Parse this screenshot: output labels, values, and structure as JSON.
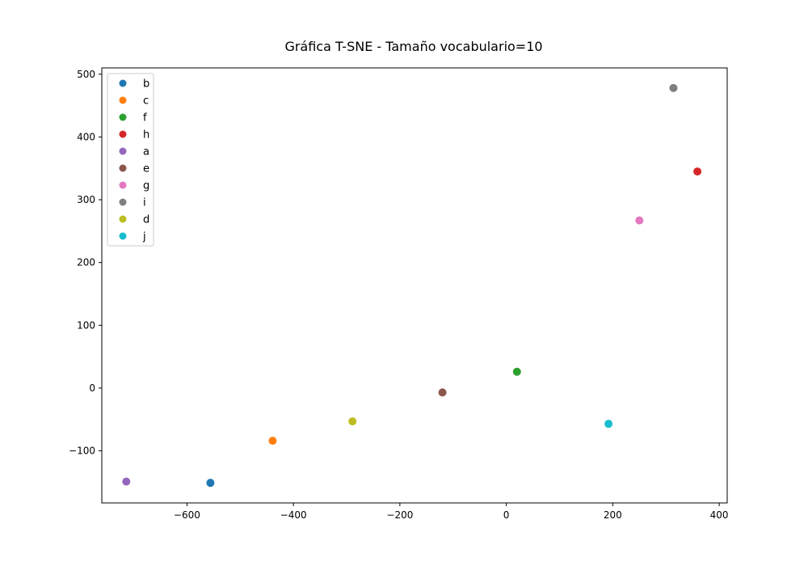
{
  "chart_data": {
    "type": "scatter",
    "title": "Gráfica T-SNE - Tamaño vocabulario=10",
    "xlabel": "",
    "ylabel": "",
    "xlim": [
      -760,
      415
    ],
    "ylim": [
      -183,
      510
    ],
    "xticks": [
      -600,
      -400,
      -200,
      0,
      200,
      400
    ],
    "xtick_labels": [
      "−600",
      "−400",
      "−200",
      "0",
      "200",
      "400"
    ],
    "yticks": [
      -100,
      0,
      100,
      200,
      300,
      400,
      500
    ],
    "ytick_labels": [
      "−100",
      "0",
      "100",
      "200",
      "300",
      "400",
      "500"
    ],
    "grid": false,
    "legend_placement": "top-left",
    "series": [
      {
        "name": "b",
        "color": "#1f77b4",
        "points": [
          [
            -556,
            -151
          ]
        ]
      },
      {
        "name": "c",
        "color": "#ff7f0e",
        "points": [
          [
            -439,
            -84
          ]
        ]
      },
      {
        "name": "f",
        "color": "#2ca02c",
        "points": [
          [
            20,
            26
          ]
        ]
      },
      {
        "name": "h",
        "color": "#d62728",
        "points": [
          [
            359,
            345
          ]
        ]
      },
      {
        "name": "a",
        "color": "#9467bd",
        "points": [
          [
            -714,
            -149
          ]
        ]
      },
      {
        "name": "e",
        "color": "#8c564b",
        "points": [
          [
            -120,
            -7
          ]
        ]
      },
      {
        "name": "g",
        "color": "#e377c2",
        "points": [
          [
            250,
            267
          ]
        ]
      },
      {
        "name": "i",
        "color": "#7f7f7f",
        "points": [
          [
            314,
            478
          ]
        ]
      },
      {
        "name": "d",
        "color": "#bcbd22",
        "points": [
          [
            -289,
            -53
          ]
        ]
      },
      {
        "name": "j",
        "color": "#17becf",
        "points": [
          [
            192,
            -57
          ]
        ]
      }
    ]
  }
}
